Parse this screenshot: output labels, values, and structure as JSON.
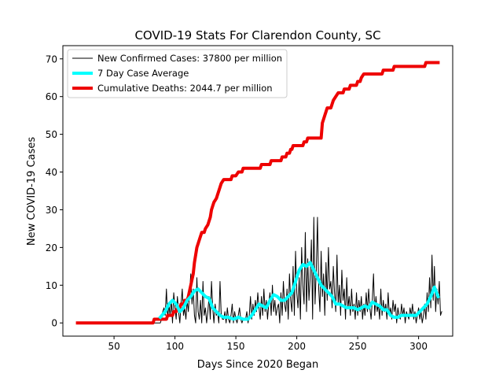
{
  "chart_data": {
    "type": "line",
    "title": "COVID-19 Stats For Clarendon County, SC",
    "xlabel": "Days Since 2020 Began",
    "ylabel": "New COVID-19 Cases",
    "xlim": [
      8,
      328
    ],
    "ylim": [
      -3.5,
      73.5
    ],
    "xticks": [
      50,
      100,
      150,
      200,
      250,
      300
    ],
    "yticks": [
      0,
      10,
      20,
      30,
      40,
      50,
      60,
      70
    ],
    "grid": false,
    "legend_position": "top-left",
    "series": [
      {
        "name": "New Confirmed Cases: 37800 per million",
        "color": "#000000",
        "linewidth": 1,
        "x_start": 20,
        "x_end": 316,
        "values": [
          0,
          0,
          0,
          0,
          0,
          0,
          0,
          0,
          0,
          0,
          0,
          0,
          0,
          0,
          0,
          0,
          0,
          0,
          0,
          0,
          0,
          0,
          0,
          0,
          0,
          0,
          0,
          0,
          0,
          0,
          0,
          0,
          0,
          0,
          0,
          0,
          0,
          0,
          0,
          0,
          0,
          0,
          0,
          0,
          0,
          0,
          0,
          0,
          0,
          0,
          0,
          0,
          0,
          0,
          0,
          0,
          0,
          0,
          0,
          0,
          0,
          0,
          0,
          0,
          0,
          0,
          0,
          0,
          0,
          1,
          3,
          4,
          2,
          9,
          1,
          5,
          2,
          6,
          0,
          8,
          4,
          1,
          7,
          3,
          0,
          5,
          9,
          2,
          4,
          1,
          6,
          3,
          8,
          13,
          5,
          9,
          2,
          0,
          12,
          3,
          1,
          6,
          0,
          11,
          2,
          4,
          0,
          3,
          7,
          1,
          11,
          4,
          0,
          5,
          2,
          3,
          0,
          11,
          2,
          1,
          1,
          3,
          0,
          4,
          1,
          0,
          2,
          5,
          0,
          3,
          1,
          0,
          2,
          4,
          1,
          0,
          1,
          1,
          1,
          3,
          0,
          2,
          7,
          1,
          5,
          2,
          6,
          3,
          8,
          4,
          1,
          7,
          2,
          9,
          3,
          6,
          1,
          5,
          8,
          2,
          10,
          3,
          6,
          2,
          4,
          5,
          0,
          8,
          2,
          11,
          5,
          3,
          9,
          1,
          13,
          6,
          3,
          15,
          2,
          19,
          8,
          4,
          12,
          1,
          20,
          10,
          5,
          24,
          3,
          17,
          6,
          12,
          22,
          1,
          28,
          5,
          14,
          28,
          9,
          3,
          19,
          7,
          13,
          2,
          16,
          6,
          20,
          9,
          11,
          4,
          15,
          8,
          3,
          18,
          5,
          10,
          2,
          14,
          6,
          9,
          1,
          12,
          4,
          7,
          2,
          9,
          3,
          5,
          1,
          8,
          2,
          6,
          3,
          7,
          1,
          5,
          2,
          8,
          3,
          9,
          4,
          1,
          6,
          13,
          2,
          7,
          3,
          5,
          1,
          9,
          2,
          6,
          3,
          5,
          1,
          8,
          2,
          4,
          1,
          6,
          3,
          5,
          0,
          4,
          2,
          1,
          5,
          2,
          4,
          0,
          3,
          2,
          1,
          4,
          2,
          5,
          1,
          3,
          0,
          2,
          4,
          1,
          3,
          0,
          2,
          5,
          1,
          8,
          3,
          12,
          4,
          18,
          6,
          15,
          3,
          9,
          5,
          11,
          2,
          3
        ]
      },
      {
        "name": "7 Day Case Average",
        "color": "#00ffff",
        "linewidth": 4,
        "points": [
          [
            88,
            1.5
          ],
          [
            92,
            3
          ],
          [
            95,
            5
          ],
          [
            98,
            6
          ],
          [
            101,
            5
          ],
          [
            104,
            3
          ],
          [
            107,
            4
          ],
          [
            110,
            6
          ],
          [
            113,
            7
          ],
          [
            116,
            8.5
          ],
          [
            119,
            9
          ],
          [
            122,
            8
          ],
          [
            125,
            7
          ],
          [
            128,
            6.5
          ],
          [
            131,
            4
          ],
          [
            134,
            3
          ],
          [
            137,
            2
          ],
          [
            140,
            1.5
          ],
          [
            144,
            1.5
          ],
          [
            148,
            1
          ],
          [
            152,
            1.5
          ],
          [
            156,
            1
          ],
          [
            160,
            1
          ],
          [
            163,
            2
          ],
          [
            166,
            3.5
          ],
          [
            169,
            5
          ],
          [
            172,
            4.5
          ],
          [
            175,
            4
          ],
          [
            178,
            6
          ],
          [
            181,
            7.5
          ],
          [
            184,
            7
          ],
          [
            187,
            6
          ],
          [
            190,
            6
          ],
          [
            193,
            7
          ],
          [
            196,
            8
          ],
          [
            199,
            11
          ],
          [
            202,
            14
          ],
          [
            205,
            15.5
          ],
          [
            208,
            15
          ],
          [
            211,
            16
          ],
          [
            214,
            14
          ],
          [
            217,
            12
          ],
          [
            220,
            10
          ],
          [
            223,
            9
          ],
          [
            226,
            8
          ],
          [
            229,
            7
          ],
          [
            232,
            5
          ],
          [
            235,
            5
          ],
          [
            238,
            4.5
          ],
          [
            241,
            4
          ],
          [
            244,
            4
          ],
          [
            247,
            4
          ],
          [
            250,
            3.5
          ],
          [
            253,
            4
          ],
          [
            256,
            4.5
          ],
          [
            259,
            4
          ],
          [
            262,
            5.5
          ],
          [
            265,
            5
          ],
          [
            268,
            4.5
          ],
          [
            271,
            3.5
          ],
          [
            274,
            3.5
          ],
          [
            277,
            2
          ],
          [
            280,
            1.5
          ],
          [
            283,
            1.5
          ],
          [
            286,
            2
          ],
          [
            289,
            2
          ],
          [
            292,
            2
          ],
          [
            295,
            2
          ],
          [
            298,
            2
          ],
          [
            301,
            3
          ],
          [
            304,
            4
          ],
          [
            307,
            5
          ],
          [
            310,
            7
          ],
          [
            313,
            9.5
          ],
          [
            316,
            7
          ]
        ]
      },
      {
        "name": "Cumulative Deaths: 2044.7 per million",
        "color": "#ee0000",
        "linewidth": 4,
        "points": [
          [
            20,
            0
          ],
          [
            82,
            0
          ],
          [
            83,
            1
          ],
          [
            93,
            1
          ],
          [
            94,
            2
          ],
          [
            98,
            2
          ],
          [
            99,
            3
          ],
          [
            101,
            3
          ],
          [
            102,
            4
          ],
          [
            104,
            4
          ],
          [
            105,
            5
          ],
          [
            107,
            5
          ],
          [
            108,
            6
          ],
          [
            110,
            6
          ],
          [
            111,
            7
          ],
          [
            113,
            10
          ],
          [
            115,
            13
          ],
          [
            116,
            16
          ],
          [
            117,
            18
          ],
          [
            118,
            20
          ],
          [
            119,
            21
          ],
          [
            120,
            22
          ],
          [
            121,
            23
          ],
          [
            122,
            24
          ],
          [
            124,
            24
          ],
          [
            125,
            25
          ],
          [
            127,
            26
          ],
          [
            129,
            28
          ],
          [
            130,
            30
          ],
          [
            131,
            31
          ],
          [
            132,
            32
          ],
          [
            134,
            33
          ],
          [
            135,
            34
          ],
          [
            136,
            35
          ],
          [
            137,
            36
          ],
          [
            138,
            37
          ],
          [
            140,
            38
          ],
          [
            146,
            38
          ],
          [
            147,
            39
          ],
          [
            150,
            39
          ],
          [
            152,
            40
          ],
          [
            155,
            40
          ],
          [
            156,
            41
          ],
          [
            170,
            41
          ],
          [
            171,
            42
          ],
          [
            178,
            42
          ],
          [
            179,
            43
          ],
          [
            187,
            43
          ],
          [
            188,
            44
          ],
          [
            191,
            44
          ],
          [
            192,
            45
          ],
          [
            194,
            45
          ],
          [
            195,
            46
          ],
          [
            196,
            46
          ],
          [
            197,
            47
          ],
          [
            205,
            47
          ],
          [
            206,
            48
          ],
          [
            208,
            48
          ],
          [
            209,
            49
          ],
          [
            220,
            49
          ],
          [
            221,
            53
          ],
          [
            222,
            54
          ],
          [
            223,
            55
          ],
          [
            224,
            56
          ],
          [
            225,
            57
          ],
          [
            228,
            57
          ],
          [
            229,
            58
          ],
          [
            230,
            59
          ],
          [
            232,
            60
          ],
          [
            234,
            61
          ],
          [
            238,
            61
          ],
          [
            239,
            62
          ],
          [
            243,
            62
          ],
          [
            244,
            63
          ],
          [
            249,
            63
          ],
          [
            250,
            64
          ],
          [
            252,
            64
          ],
          [
            253,
            65
          ],
          [
            255,
            66
          ],
          [
            256,
            66
          ],
          [
            270,
            66
          ],
          [
            271,
            67
          ],
          [
            279,
            67
          ],
          [
            280,
            68
          ],
          [
            305,
            68
          ],
          [
            306,
            69
          ],
          [
            316,
            69
          ]
        ]
      }
    ]
  }
}
